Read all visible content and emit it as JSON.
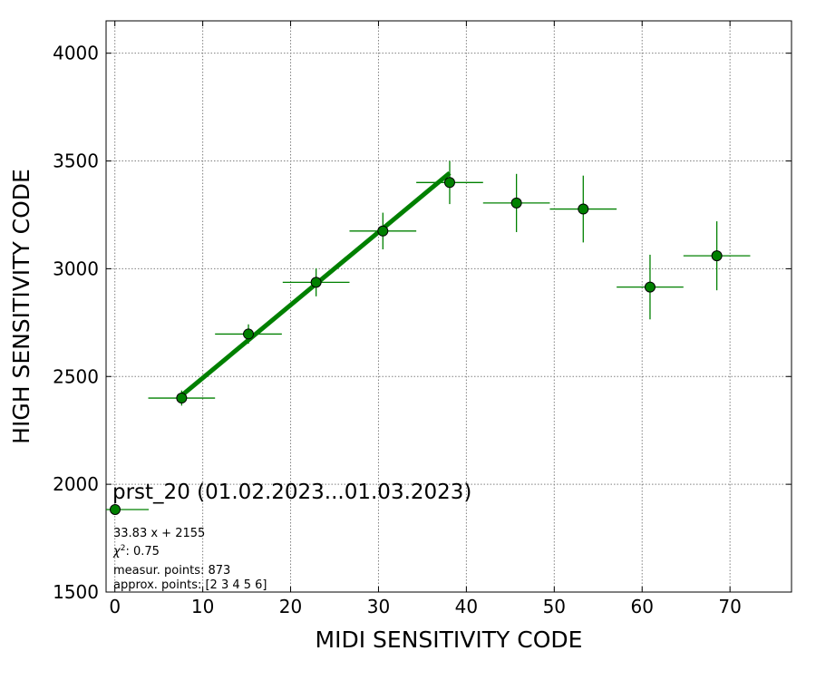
{
  "chart_data": {
    "type": "scatter",
    "xlabel": "MIDI SENSITIVITY CODE",
    "ylabel": "HIGH SENSITIVITY CODE",
    "xlim": [
      -1,
      77
    ],
    "ylim": [
      1500,
      4150
    ],
    "xticks": [
      0,
      10,
      20,
      30,
      40,
      50,
      60,
      70
    ],
    "yticks": [
      1500,
      2000,
      2500,
      3000,
      3500,
      4000
    ],
    "grid": true,
    "legend_position": "bottom-left",
    "series": [
      {
        "name": "prst_20 (01.02.2023...01.03.2023)",
        "color": "#008000",
        "points": [
          {
            "x": 7.6,
            "y": 2400,
            "xerr": 3.8,
            "yerr": 35
          },
          {
            "x": 15.2,
            "y": 2697,
            "xerr": 3.8,
            "yerr": 45
          },
          {
            "x": 22.9,
            "y": 2937,
            "xerr": 3.8,
            "yerr": 65
          },
          {
            "x": 30.5,
            "y": 3175,
            "xerr": 3.8,
            "yerr": 85
          },
          {
            "x": 38.1,
            "y": 3400,
            "xerr": 3.8,
            "yerr": 100
          },
          {
            "x": 45.7,
            "y": 3305,
            "xerr": 3.8,
            "yerr": 135
          },
          {
            "x": 53.3,
            "y": 3277,
            "xerr": 3.8,
            "yerr": 155
          },
          {
            "x": 60.9,
            "y": 2915,
            "xerr": 3.8,
            "yerr": 150
          },
          {
            "x": 68.5,
            "y": 3060,
            "xerr": 3.8,
            "yerr": 160
          }
        ]
      }
    ],
    "fit": {
      "slope": 33.83,
      "intercept": 2155,
      "x_range": [
        7.6,
        38.1
      ],
      "color": "#008000"
    },
    "legend": {
      "title": "prst_20 (01.02.2023...01.03.2023)",
      "fit_label": "33.83 x + 2155",
      "chi2_symbol": "χ",
      "chi2_sup": "2",
      "chi2_value": ": 0.75",
      "measur_points": "measur. points: 873",
      "approx_points": "approx. points: [2 3 4 5 6]"
    }
  }
}
